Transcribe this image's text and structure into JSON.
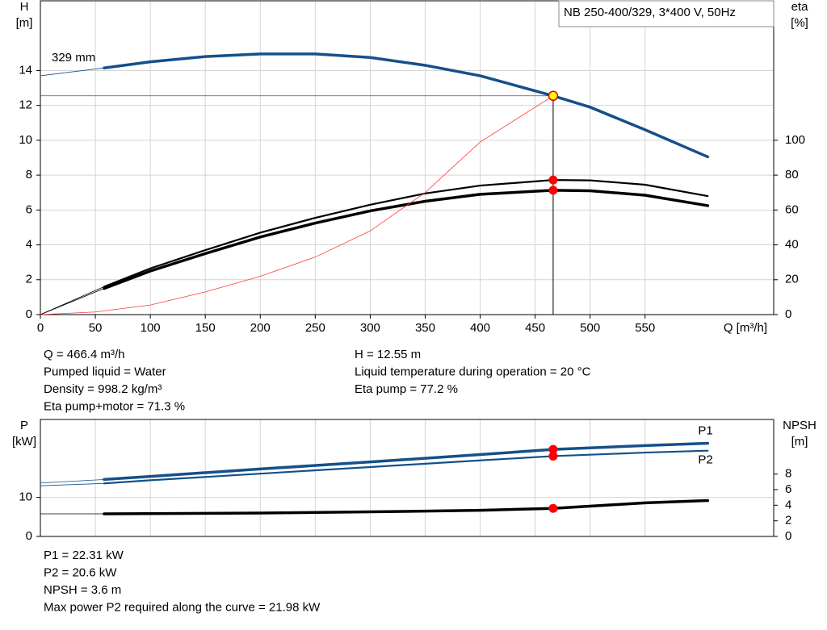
{
  "chart_data": [
    {
      "type": "line",
      "title": "NB 250-400/329, 3*400 V, 50Hz",
      "ylabel": [
        "H",
        "[m]"
      ],
      "y2label": [
        "eta",
        "[%]"
      ],
      "xlabel": "Q [m³/h]",
      "xlim": [
        0,
        667
      ],
      "xticks": [
        0,
        50,
        100,
        150,
        200,
        250,
        300,
        350,
        400,
        450,
        500,
        550
      ],
      "ylim": [
        0,
        18
      ],
      "yticks": [
        0,
        2,
        4,
        6,
        8,
        10,
        12,
        14
      ],
      "y2lim": [
        0,
        180
      ],
      "y2ticks": [
        0,
        20,
        40,
        60,
        80,
        100
      ],
      "grid": true,
      "series": [
        {
          "name": "329 mm",
          "color": "#14508a",
          "width": 3.5,
          "x": [
            0,
            58,
            100,
            150,
            200,
            250,
            300,
            350,
            400,
            466.4,
            500,
            550,
            607
          ],
          "values": [
            13.7,
            14.15,
            14.5,
            14.8,
            14.95,
            14.95,
            14.75,
            14.3,
            13.7,
            12.55,
            11.9,
            10.6,
            9.05
          ]
        },
        {
          "color": "#000000",
          "width": 2.2,
          "axis": "y2",
          "x": [
            0,
            58,
            100,
            150,
            200,
            250,
            300,
            350,
            400,
            466.4,
            500,
            550,
            607
          ],
          "values": [
            0,
            16,
            26.5,
            37,
            47,
            55.5,
            63,
            69.5,
            74,
            77.2,
            77,
            74.5,
            68
          ]
        },
        {
          "color": "#000000",
          "width": 3.5,
          "axis": "y2",
          "x": [
            0,
            58,
            100,
            150,
            200,
            250,
            300,
            350,
            400,
            466.4,
            500,
            550,
            607
          ],
          "values": [
            0,
            15,
            25,
            35,
            44.5,
            52.5,
            59.5,
            65,
            69,
            71.3,
            71,
            68.5,
            62.5
          ]
        },
        {
          "color": "#ff3b3b",
          "width": 0.8,
          "x": [
            0,
            50,
            100,
            150,
            200,
            250,
            300,
            350,
            400,
            466.4
          ],
          "values": [
            0,
            0.15,
            0.55,
            1.3,
            2.2,
            3.3,
            4.8,
            7.0,
            9.9,
            12.55
          ]
        }
      ],
      "markers": [
        {
          "x": 466.4,
          "y": 12.55,
          "color": "#ffff00"
        },
        {
          "x": 466.4,
          "y": 77.2,
          "axis": "y2",
          "color": "#ff0000"
        },
        {
          "x": 466.4,
          "y": 71.3,
          "axis": "y2",
          "color": "#ff0000"
        }
      ],
      "info_left": [
        "Q = 466.4 m³/h",
        "Pumped liquid = Water",
        "Density = 998.2 kg/m³",
        "Eta pump+motor = 71.3 %"
      ],
      "info_right": [
        "H = 12.55 m",
        "Liquid temperature during operation = 20 °C",
        "Eta pump = 77.2 %"
      ]
    },
    {
      "type": "line",
      "ylabel": [
        "P",
        "[kW]"
      ],
      "y2label": [
        "NPSH",
        "[m]"
      ],
      "ylim": [
        0,
        30
      ],
      "yticks": [
        0,
        10
      ],
      "y2lim": [
        0,
        15
      ],
      "y2ticks": [
        0,
        2,
        4,
        6,
        8
      ],
      "grid": true,
      "series": [
        {
          "name": "P1",
          "color": "#14508a",
          "width": 3.5,
          "x": [
            0,
            58,
            100,
            200,
            300,
            400,
            466.4,
            550,
            607
          ],
          "values": [
            13.7,
            14.6,
            15.4,
            17.3,
            19.1,
            21.0,
            22.31,
            23.3,
            23.9
          ]
        },
        {
          "name": "P2",
          "color": "#14508a",
          "width": 2.2,
          "x": [
            0,
            58,
            100,
            200,
            300,
            400,
            466.4,
            550,
            607
          ],
          "values": [
            13.0,
            13.6,
            14.4,
            16.1,
            17.8,
            19.5,
            20.6,
            21.5,
            22.0
          ]
        },
        {
          "color": "#000000",
          "width": 3.5,
          "axis": "y2",
          "x": [
            0,
            58,
            200,
            300,
            400,
            466.4,
            550,
            607
          ],
          "values": [
            2.9,
            2.9,
            3.0,
            3.15,
            3.35,
            3.6,
            4.3,
            4.6
          ]
        }
      ],
      "markers": [
        {
          "x": 466.4,
          "y": 22.31,
          "color": "#ff0000"
        },
        {
          "x": 466.4,
          "y": 20.6,
          "color": "#ff0000"
        },
        {
          "x": 466.4,
          "y": 3.6,
          "axis": "y2",
          "color": "#ff0000"
        }
      ],
      "info_left": [
        "P1 = 22.31 kW",
        "P2 = 20.6 kW",
        "NPSH = 3.6 m",
        "Max power P2 required along the curve = 21.98 kW"
      ]
    }
  ]
}
